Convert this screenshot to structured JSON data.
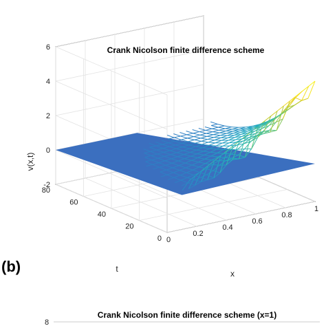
{
  "panel_label": "(b)",
  "chart_data": [
    {
      "type": "surface",
      "title": "Crank Nicolson finite difference scheme",
      "xlabel": "x",
      "ylabel": "t",
      "zlabel": "v(x,t)",
      "xlim": [
        0,
        1
      ],
      "ylim": [
        0,
        80
      ],
      "zlim": [
        -2,
        6
      ],
      "x_ticks": [
        "0",
        "0.2",
        "0.4",
        "0.6",
        "0.8",
        "1"
      ],
      "y_ticks": [
        "0",
        "20",
        "40",
        "60",
        "80"
      ],
      "z_ticks": [
        "-2",
        "0",
        "2",
        "4",
        "6"
      ],
      "grid": true,
      "colormap": [
        "#3e26a8",
        "#2f7dc4",
        "#1fa9c2",
        "#45c29a",
        "#a9c93c",
        "#f2d52a",
        "#f9fb14"
      ],
      "flat_region_color": "#3b6fbf",
      "surface_peak": {
        "x": 1,
        "t": 0,
        "v": 5
      }
    },
    {
      "type": "line",
      "title": "Crank Nicolson finite difference scheme (x=1)",
      "y_ticks": [
        "8"
      ]
    }
  ]
}
